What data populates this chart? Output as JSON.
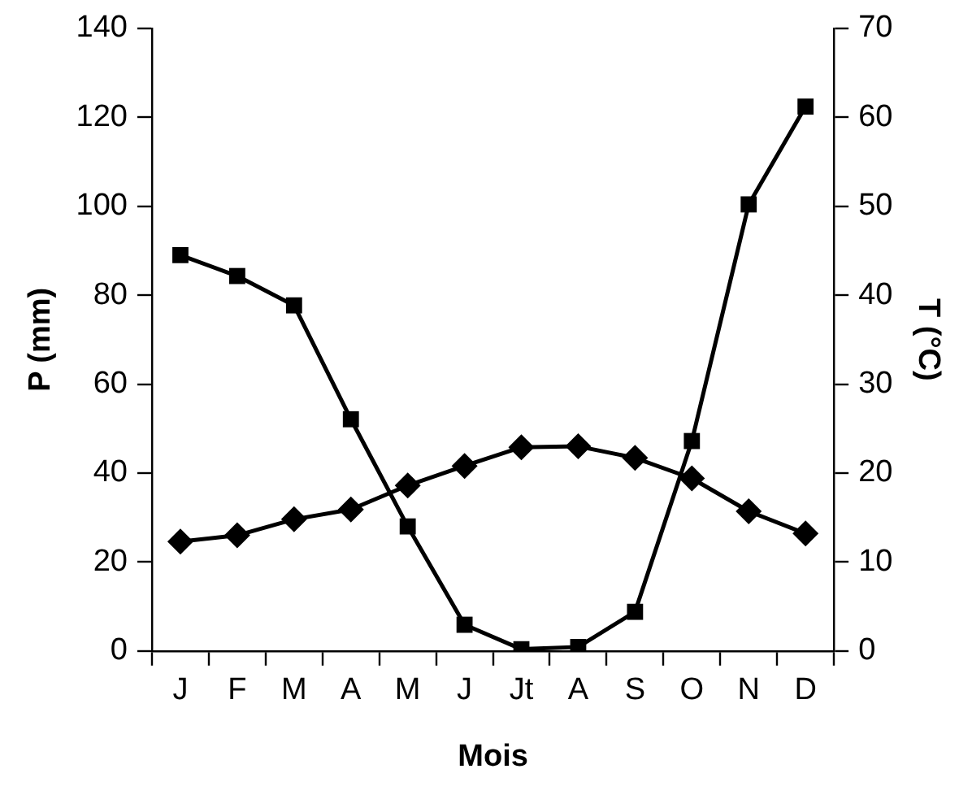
{
  "chart_data": {
    "type": "line",
    "xlabel": "Mois",
    "ylabel": "P (mm)",
    "y2label": "T (°C)",
    "categories": [
      "J",
      "F",
      "M",
      "A",
      "M",
      "J",
      "Jt",
      "A",
      "S",
      "O",
      "N",
      "D"
    ],
    "series": [
      {
        "color": "#000000",
        "marker": "square",
        "values": [
          89,
          84.3,
          77.7,
          52.1,
          28,
          5.9,
          0.4,
          0.9,
          8.8,
          47.2,
          100.4,
          122.4
        ]
      },
      {
        "color": "#000000",
        "marker": "diamond",
        "axis": "y2",
        "values": [
          12.3,
          13,
          14.8,
          15.9,
          18.6,
          20.8,
          22.9,
          23,
          21.7,
          19.4,
          15.7,
          13.2
        ]
      }
    ],
    "ylim": [
      0,
      140
    ],
    "yticks": [
      0,
      20,
      40,
      60,
      80,
      100,
      120,
      140
    ],
    "y2lim": [
      0,
      70
    ],
    "y2ticks": [
      0,
      10,
      20,
      30,
      40,
      50,
      60,
      70
    ],
    "grid": false,
    "legend": false,
    "line_style": "solid"
  }
}
